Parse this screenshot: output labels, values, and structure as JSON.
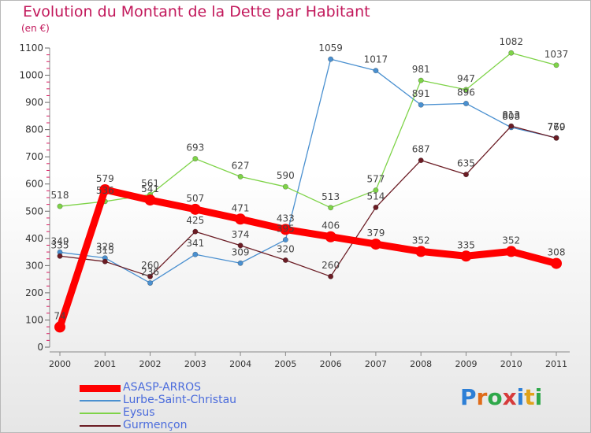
{
  "header": {
    "title": "Evolution du Montant de la Dette par Habitant",
    "unit": "(en €)"
  },
  "logo": {
    "text": "Proxiti",
    "letter_colors": [
      "#2d7fd6",
      "#e06c1a",
      "#2ea84a",
      "#d63b3b",
      "#2d7fd6",
      "#e0a21a",
      "#2ea84a"
    ]
  },
  "chart_data": {
    "type": "line",
    "x": [
      "2000",
      "2001",
      "2002",
      "2003",
      "2004",
      "2005",
      "2006",
      "2007",
      "2008",
      "2009",
      "2010",
      "2011"
    ],
    "ylim": [
      0,
      1100
    ],
    "yticks": [
      0,
      100,
      200,
      300,
      400,
      500,
      600,
      700,
      800,
      900,
      1000,
      1100
    ],
    "grid": false,
    "legend_position": "bottom-left",
    "series": [
      {
        "name": "ASASP-ARROS",
        "color": "#ff0000",
        "values": [
          74,
          579,
          541,
          507,
          471,
          433,
          406,
          379,
          352,
          335,
          352,
          308
        ]
      },
      {
        "name": "Lurbe-Saint-Christau",
        "color": "#4a90d0",
        "values": [
          349,
          328,
          236,
          341,
          309,
          395,
          1059,
          1017,
          891,
          896,
          808,
          770
        ]
      },
      {
        "name": "Eysus",
        "color": "#7ed348",
        "values": [
          518,
          536,
          561,
          693,
          627,
          590,
          513,
          577,
          981,
          947,
          1082,
          1037
        ]
      },
      {
        "name": "Gurmençon",
        "color": "#6b1c24",
        "values": [
          335,
          315,
          260,
          425,
          374,
          320,
          260,
          514,
          687,
          635,
          813,
          769
        ]
      }
    ],
    "point_labels": [
      [
        "74",
        "579",
        "541",
        "507",
        "471",
        "433",
        "406",
        "379",
        "352",
        "335",
        "352",
        "308"
      ],
      [
        "349",
        "328",
        "236",
        "341",
        "309",
        "395",
        "1059",
        "1017",
        "891",
        "896",
        "808",
        "770"
      ],
      [
        "518",
        "536",
        "561",
        "693",
        "627",
        "590",
        "513",
        "577",
        "981",
        "947",
        "1082",
        "1037"
      ],
      [
        "335",
        "315",
        "260",
        "425",
        "374",
        "320",
        "260",
        "514",
        "687",
        "635",
        "813",
        "769"
      ]
    ]
  }
}
